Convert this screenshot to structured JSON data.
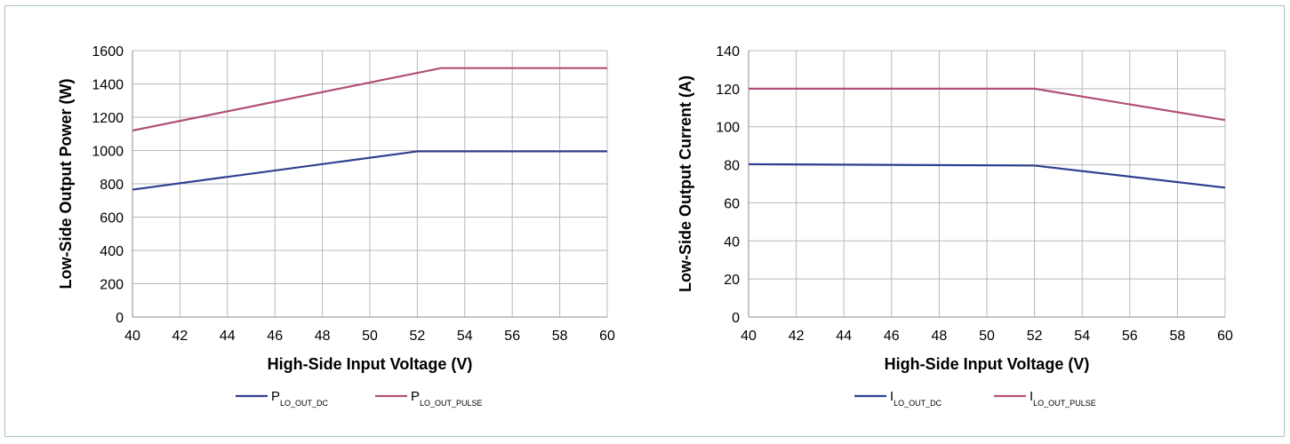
{
  "chart_data": [
    {
      "type": "line",
      "xlabel": "High-Side Input Voltage (V)",
      "ylabel": "Low-Side Output Power (W)",
      "xlim": [
        40,
        60
      ],
      "ylim": [
        0,
        1600
      ],
      "xticks": [
        40,
        42,
        44,
        46,
        48,
        50,
        52,
        54,
        56,
        58,
        60
      ],
      "yticks": [
        0,
        200,
        400,
        600,
        800,
        1000,
        1200,
        1400,
        1600
      ],
      "grid": true,
      "legend": "bottom",
      "series": [
        {
          "name_main": "P",
          "name_sub": "LO_OUT_DC",
          "color": "#2e3f8f",
          "x": [
            40,
            52,
            60
          ],
          "y": [
            765,
            995,
            995
          ]
        },
        {
          "name_main": "P",
          "name_sub": "LO_OUT_PULSE",
          "color": "#b0507a",
          "x": [
            40,
            53,
            60
          ],
          "y": [
            1120,
            1495,
            1495
          ]
        }
      ]
    },
    {
      "type": "line",
      "xlabel": "High-Side Input Voltage (V)",
      "ylabel": "Low-Side Output Current (A)",
      "xlim": [
        40,
        60
      ],
      "ylim": [
        0,
        140
      ],
      "xticks": [
        40,
        42,
        44,
        46,
        48,
        50,
        52,
        54,
        56,
        58,
        60
      ],
      "yticks": [
        0,
        20,
        40,
        60,
        80,
        100,
        120,
        140
      ],
      "grid": true,
      "legend": "bottom",
      "series": [
        {
          "name_main": "I",
          "name_sub": "LO_OUT_DC",
          "color": "#2e3f8f",
          "x": [
            40,
            52,
            60
          ],
          "y": [
            80.3,
            79.6,
            68
          ]
        },
        {
          "name_main": "I",
          "name_sub": "LO_OUT_PULSE",
          "color": "#b0507a",
          "x": [
            40,
            52,
            60
          ],
          "y": [
            120,
            120,
            103.5
          ]
        }
      ]
    }
  ]
}
